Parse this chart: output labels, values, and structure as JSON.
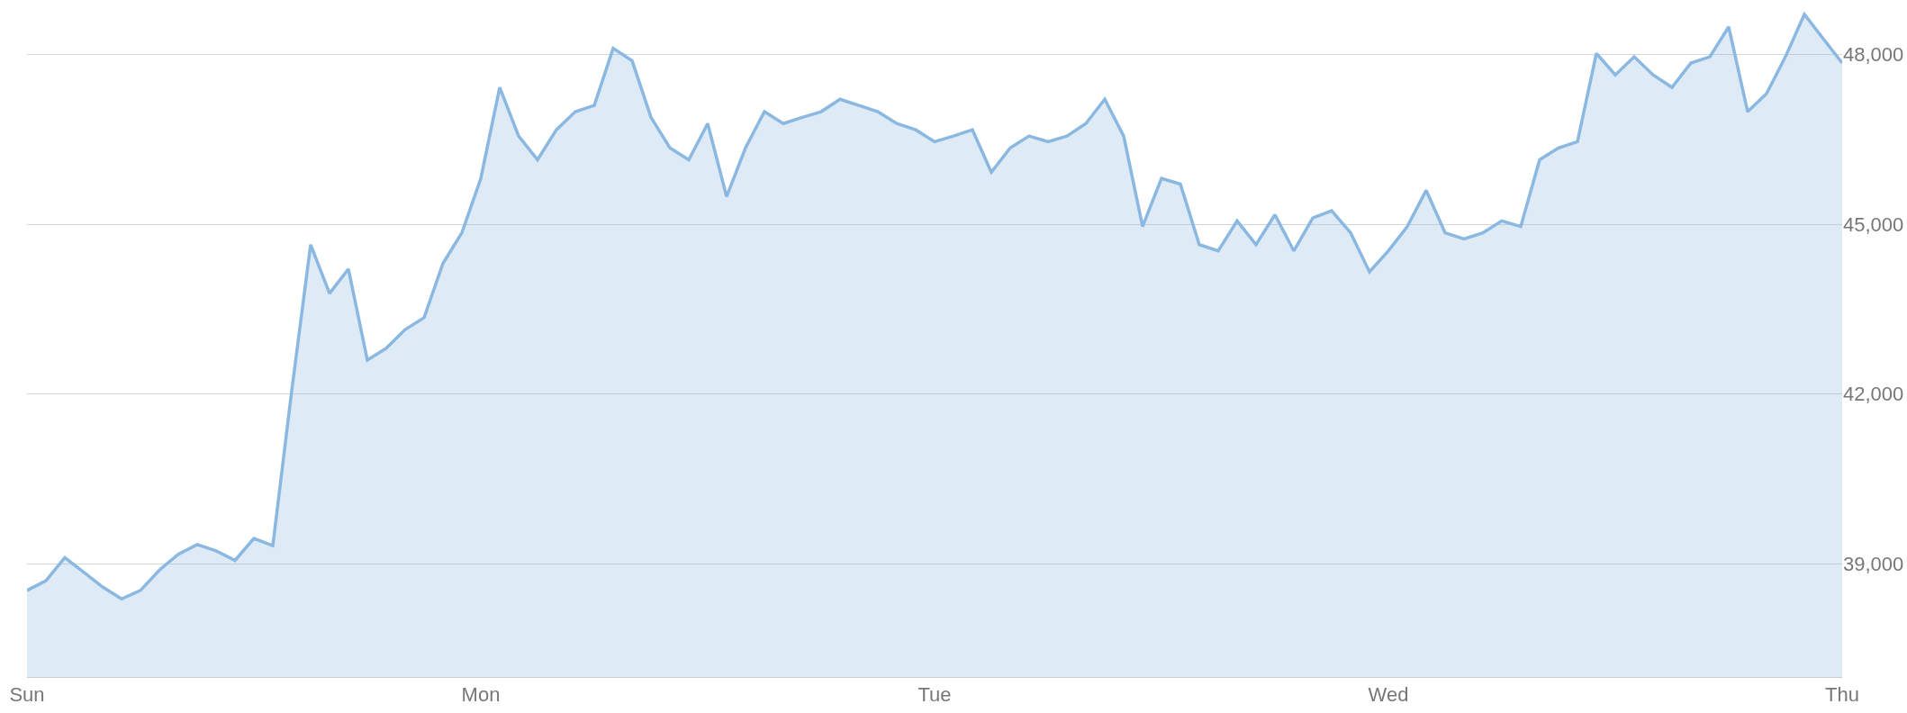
{
  "chart_data": {
    "type": "area",
    "categories": [
      "Sun",
      null,
      null,
      null,
      null,
      null,
      null,
      null,
      null,
      null,
      null,
      null,
      null,
      null,
      null,
      null,
      null,
      null,
      null,
      null,
      null,
      null,
      null,
      null,
      "Mon",
      null,
      null,
      null,
      null,
      null,
      null,
      null,
      null,
      null,
      null,
      null,
      null,
      null,
      null,
      null,
      null,
      null,
      null,
      null,
      null,
      null,
      null,
      null,
      "Tue",
      null,
      null,
      null,
      null,
      null,
      null,
      null,
      null,
      null,
      null,
      null,
      null,
      null,
      null,
      null,
      null,
      null,
      null,
      null,
      null,
      null,
      null,
      null,
      "Wed",
      null,
      null,
      null,
      null,
      null,
      null,
      null,
      null,
      null,
      null,
      null,
      null,
      null,
      null,
      null,
      null,
      null,
      null,
      null,
      null,
      null,
      null,
      null,
      "Thu"
    ],
    "series": [
      {
        "color": "#8ab8e0",
        "values": [
          38530,
          38700,
          39110,
          38850,
          38590,
          38380,
          38530,
          38890,
          39170,
          39340,
          39230,
          39060,
          39450,
          39320,
          42060,
          44640,
          43780,
          44210,
          42600,
          42810,
          43140,
          43350,
          44310,
          44850,
          45810,
          47420,
          46560,
          46140,
          46670,
          46990,
          47100,
          48110,
          47890,
          46890,
          46350,
          46140,
          46780,
          45490,
          46350,
          46990,
          46780,
          46890,
          46990,
          47210,
          47100,
          46990,
          46780,
          46670,
          46460,
          46560,
          46670,
          45920,
          46350,
          46560,
          46460,
          46560,
          46780,
          47210,
          46560,
          44960,
          45810,
          45710,
          44640,
          44530,
          45060,
          44640,
          45170,
          44530,
          45110,
          45240,
          44850,
          44160,
          44530,
          44960,
          45600,
          44850,
          44740,
          44850,
          45060,
          44960,
          46140,
          46350,
          46460,
          48020,
          47640,
          47960,
          47640,
          47420,
          47850,
          47960,
          48490,
          46990,
          47310,
          47960,
          48710,
          48280,
          47850
        ]
      }
    ],
    "ylim": [
      37000,
      48900
    ],
    "yticks": [
      {
        "value": 39000,
        "label": "39,000"
      },
      {
        "value": 42000,
        "label": "42,000"
      },
      {
        "value": 45000,
        "label": "45,000"
      },
      {
        "value": 48000,
        "label": "48,000"
      }
    ],
    "grid": "y"
  }
}
